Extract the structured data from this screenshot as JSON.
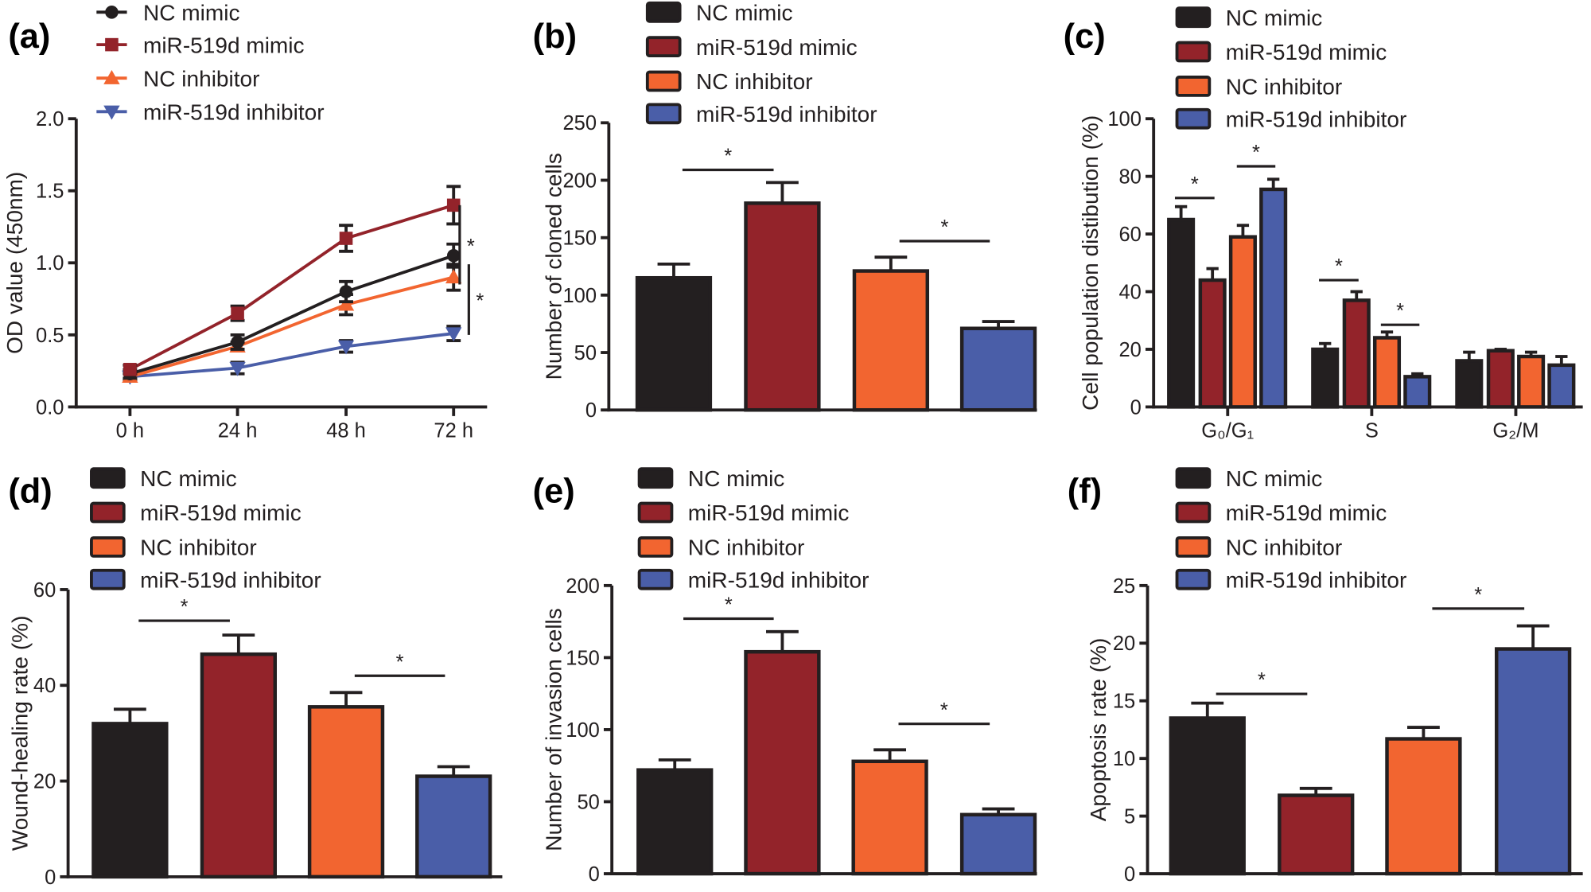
{
  "colors": {
    "NC mimic": "#231f20",
    "miR-519d mimic": "#93232a",
    "NC inhibitor": "#f26530",
    "miR-519d inhibitor": "#4a5ea8",
    "axis": "#231f20"
  },
  "chart_data": [
    {
      "panel": "(a)",
      "type": "line",
      "ylabel": "OD value (450nm)",
      "xlabel": "",
      "categories": [
        "0 h",
        "24 h",
        "48 h",
        "72 h"
      ],
      "ylim": [
        0,
        2.0
      ],
      "yticks": [
        "0.0",
        "0.5",
        "1.0",
        "1.5",
        "2.0"
      ],
      "ytick_values": [
        0,
        0.5,
        1.0,
        1.5,
        2.0
      ],
      "legend": "top-left",
      "grid": false,
      "series": [
        {
          "name": "NC mimic",
          "marker": "circle",
          "values": [
            0.23,
            0.45,
            0.8,
            1.05
          ],
          "errors": [
            0.03,
            0.05,
            0.07,
            0.08
          ]
        },
        {
          "name": "miR-519d mimic",
          "marker": "square",
          "values": [
            0.26,
            0.65,
            1.17,
            1.4
          ],
          "errors": [
            0.03,
            0.05,
            0.09,
            0.13
          ]
        },
        {
          "name": "NC inhibitor",
          "marker": "triangle-up",
          "values": [
            0.21,
            0.42,
            0.71,
            0.9
          ],
          "errors": [
            0.02,
            0.03,
            0.07,
            0.09
          ]
        },
        {
          "name": "miR-519d inhibitor",
          "marker": "triangle-down",
          "values": [
            0.21,
            0.27,
            0.42,
            0.51
          ],
          "errors": [
            0.02,
            0.04,
            0.04,
            0.05
          ]
        }
      ],
      "significance": [
        {
          "between": [
            "miR-519d mimic",
            "NC mimic"
          ],
          "range": [
            1.4,
            0.85
          ],
          "label": "*"
        },
        {
          "between": [
            "NC inhibitor",
            "miR-519d inhibitor"
          ],
          "range": [
            0.99,
            0.5
          ],
          "label": "*"
        }
      ]
    },
    {
      "panel": "(b)",
      "type": "bar",
      "ylabel": "Number of cloned cells",
      "categories": [
        "NC mimic",
        "miR-519d mimic",
        "NC inhibitor",
        "miR-519d inhibitor"
      ],
      "values": [
        115,
        180,
        121,
        71
      ],
      "errors": [
        12,
        18,
        12,
        6
      ],
      "ylim": [
        0,
        250
      ],
      "yticks": [
        "0",
        "50",
        "100",
        "150",
        "200",
        "250"
      ],
      "ytick_values": [
        0,
        50,
        100,
        150,
        200,
        250
      ],
      "legend": "top",
      "grid": false,
      "significance": [
        {
          "from": 0,
          "to": 1,
          "y": 209,
          "label": "*"
        },
        {
          "from": 2,
          "to": 3,
          "y": 147,
          "label": "*"
        }
      ]
    },
    {
      "panel": "(c)",
      "type": "grouped-bar",
      "ylabel": "Cell population  distibution (%)",
      "categories": [
        "G₀/G₁",
        "S",
        "G₂/M"
      ],
      "ylim": [
        0,
        100
      ],
      "yticks": [
        "0",
        "20",
        "40",
        "60",
        "80",
        "100"
      ],
      "ytick_values": [
        0,
        20,
        40,
        60,
        80,
        100
      ],
      "legend": "top",
      "grid": false,
      "series": [
        {
          "name": "NC mimic",
          "values": [
            65,
            20,
            16
          ],
          "errors": [
            4.5,
            2,
            3
          ]
        },
        {
          "name": "miR-519d mimic",
          "values": [
            44,
            37,
            19.5
          ],
          "errors": [
            4,
            3,
            0.5
          ]
        },
        {
          "name": "NC inhibitor",
          "values": [
            59,
            24,
            17.5
          ],
          "errors": [
            4,
            2,
            1.5
          ]
        },
        {
          "name": "miR-519d inhibitor",
          "values": [
            75.5,
            10.5,
            14.5
          ],
          "errors": [
            3.5,
            1,
            3
          ]
        }
      ],
      "significance": [
        {
          "group": 0,
          "from": 0,
          "to": 1,
          "y": 72.5,
          "label": "*"
        },
        {
          "group": 0,
          "from": 2,
          "to": 3,
          "y": 83.5,
          "label": "*"
        },
        {
          "group": 1,
          "from": 0,
          "to": 1,
          "y": 44,
          "label": "*"
        },
        {
          "group": 1,
          "from": 2,
          "to": 3,
          "y": 28.5,
          "label": "*"
        }
      ]
    },
    {
      "panel": "(d)",
      "type": "bar",
      "ylabel": "Wound-healing rate (%)",
      "categories": [
        "NC mimic",
        "miR-519d mimic",
        "NC inhibitor",
        "miR-519d inhibitor"
      ],
      "values": [
        32,
        46.5,
        35.5,
        21
      ],
      "errors": [
        3,
        4,
        3,
        2
      ],
      "ylim": [
        0,
        60
      ],
      "yticks": [
        "0",
        "20",
        "40",
        "60"
      ],
      "ytick_values": [
        0,
        20,
        40,
        60
      ],
      "legend": "top",
      "grid": false,
      "significance": [
        {
          "from": 0,
          "to": 1,
          "y": 53.5,
          "label": "*"
        },
        {
          "from": 2,
          "to": 3,
          "y": 42,
          "label": "*"
        }
      ]
    },
    {
      "panel": "(e)",
      "type": "bar",
      "ylabel": "Number of invasion cells",
      "categories": [
        "NC mimic",
        "miR-519d mimic",
        "NC inhibitor",
        "miR-519d inhibitor"
      ],
      "values": [
        72,
        154,
        78,
        41
      ],
      "errors": [
        7,
        14,
        8,
        4
      ],
      "ylim": [
        0,
        200
      ],
      "yticks": [
        "0",
        "50",
        "100",
        "150",
        "200"
      ],
      "ytick_values": [
        0,
        50,
        100,
        150,
        200
      ],
      "legend": "top",
      "grid": false,
      "significance": [
        {
          "from": 0,
          "to": 1,
          "y": 177,
          "label": "*"
        },
        {
          "from": 2,
          "to": 3,
          "y": 104,
          "label": "*"
        }
      ]
    },
    {
      "panel": "(f)",
      "type": "bar",
      "ylabel": "Apoptosis rate (%)",
      "categories": [
        "NC mimic",
        "miR-519d mimic",
        "NC inhibitor",
        "miR-519d inhibitor"
      ],
      "values": [
        13.5,
        6.8,
        11.7,
        19.5
      ],
      "errors": [
        1.3,
        0.6,
        1.0,
        2.0
      ],
      "ylim": [
        0,
        25
      ],
      "yticks": [
        "0",
        "5",
        "10",
        "15",
        "20",
        "25"
      ],
      "ytick_values": [
        0,
        5,
        10,
        15,
        20,
        25
      ],
      "legend": "top",
      "grid": false,
      "significance": [
        {
          "from": 0,
          "to": 1,
          "y": 15.6,
          "label": "*"
        },
        {
          "from": 2,
          "to": 3,
          "y": 23,
          "label": "*"
        }
      ]
    }
  ]
}
